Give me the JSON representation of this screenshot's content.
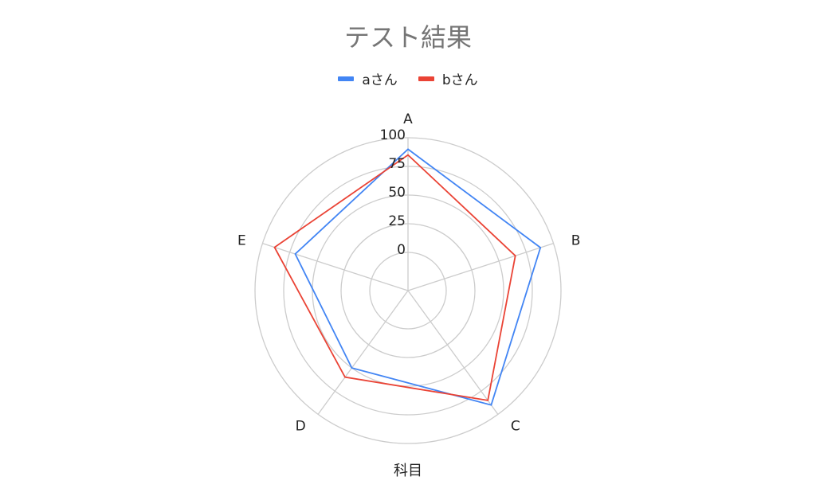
{
  "chart_data": {
    "type": "radar",
    "title": "テスト結果",
    "xlabel": "科目",
    "categories": [
      "A",
      "B",
      "C",
      "D",
      "E"
    ],
    "radial_ticks": [
      "0",
      "25",
      "50",
      "75",
      "100"
    ],
    "rlim": [
      0,
      100
    ],
    "grid": true,
    "legend_position": "top",
    "series": [
      {
        "name": "aさん",
        "color": "#4285f4",
        "values": [
          90,
          88,
          90,
          50,
          70
        ]
      },
      {
        "name": "bさん",
        "color": "#ea4335",
        "values": [
          85,
          65,
          85,
          60,
          89
        ]
      }
    ]
  },
  "colors": {
    "grid": "#cccccc",
    "text": "#222222",
    "title": "#757575"
  }
}
